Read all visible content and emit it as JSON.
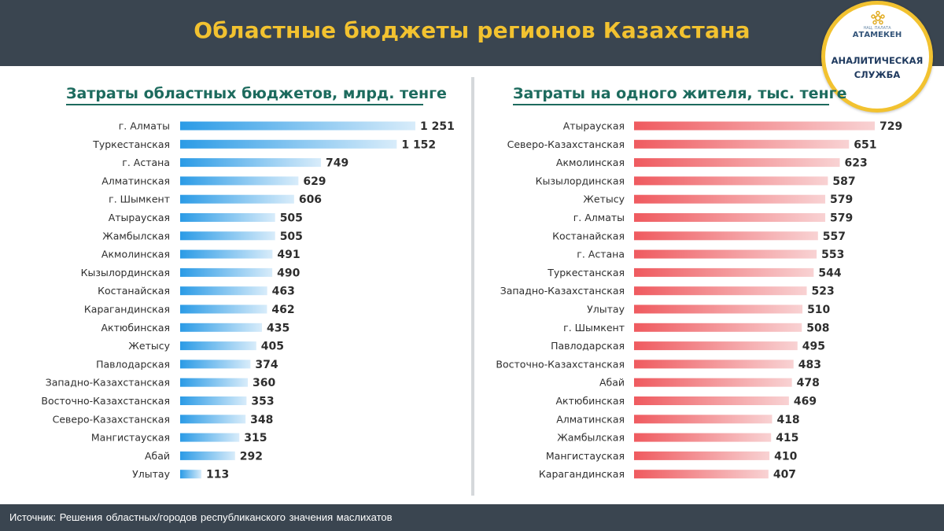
{
  "header": {
    "title": "Областные бюджеты регионов Казахстана"
  },
  "logo": {
    "small_text": "НАЦ. ПАЛАТА",
    "brand": "АТАМЕКЕН",
    "line1": "АНАЛИТИЧЕСКАЯ",
    "line2": "СЛУЖБА",
    "ring_color": "#f2c230",
    "icon": "atameken-emblem-icon"
  },
  "footer": {
    "source": "Источник: Решения областных/городов республиканского значения маслихатов"
  },
  "colors": {
    "header_bg": "#3a4550",
    "title_color": "#f2c230",
    "left_bar": "#2b9be6",
    "right_bar": "#ef5a5f"
  },
  "chart_data": [
    {
      "type": "bar",
      "orientation": "horizontal",
      "title": "Затраты областных бюджетов, млрд. тенге",
      "categories": [
        "г. Алматы",
        "Туркестанская",
        "г. Астана",
        "Алматинская",
        "г. Шымкент",
        "Атырауская",
        "Жамбылская",
        "Акмолинская",
        "Кызылординская",
        "Костанайская",
        "Карагандинская",
        "Актюбинская",
        "Жетысу",
        "Павлодарская",
        "Западно-Казахстанская",
        "Восточно-Казахстанская",
        "Северо-Казахстанская",
        "Мангистауская",
        "Абай",
        "Улытау"
      ],
      "values": [
        1251,
        1152,
        749,
        629,
        606,
        505,
        505,
        491,
        490,
        463,
        462,
        435,
        405,
        374,
        360,
        353,
        348,
        315,
        292,
        113
      ],
      "value_labels": [
        "1 251",
        "1 152",
        "749",
        "629",
        "606",
        "505",
        "505",
        "491",
        "490",
        "463",
        "462",
        "435",
        "405",
        "374",
        "360",
        "353",
        "348",
        "315",
        "292",
        "113"
      ],
      "color": "#2b9be6",
      "grid": false
    },
    {
      "type": "bar",
      "orientation": "horizontal",
      "title": "Затраты на одного жителя, тыс. тенге",
      "categories": [
        "Атырауская",
        "Северо-Казахстанская",
        "Акмолинская",
        "Кызылординская",
        "Жетысу",
        "г. Алматы",
        "Костанайская",
        "г. Астана",
        "Туркестанская",
        "Западно-Казахстанская",
        "Улытау",
        "г. Шымкент",
        "Павлодарская",
        "Восточно-Казахстанская",
        "Абай",
        "Актюбинская",
        "Алматинская",
        "Жамбылская",
        "Мангистауская",
        "Карагандинская"
      ],
      "values": [
        729,
        651,
        623,
        587,
        579,
        579,
        557,
        553,
        544,
        523,
        510,
        508,
        495,
        483,
        478,
        469,
        418,
        415,
        410,
        407
      ],
      "value_labels": [
        "729",
        "651",
        "623",
        "587",
        "579",
        "579",
        "557",
        "553",
        "544",
        "523",
        "510",
        "508",
        "495",
        "483",
        "478",
        "469",
        "418",
        "415",
        "410",
        "407"
      ],
      "color": "#ef5a5f",
      "grid": false
    }
  ]
}
